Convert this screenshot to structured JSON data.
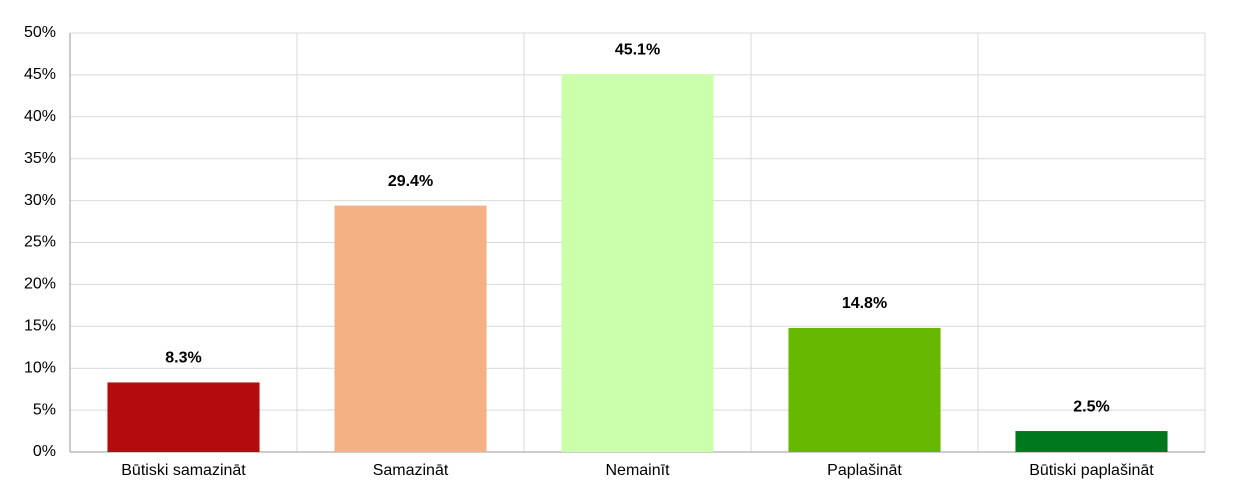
{
  "chart_data": {
    "type": "bar",
    "categories": [
      "Būtiski samazināt",
      "Samazināt",
      "Nemainīt",
      "Paplašināt",
      "Būtiski paplašināt"
    ],
    "values": [
      8.3,
      29.4,
      45.1,
      14.8,
      2.5
    ],
    "value_labels": [
      "8.3%",
      "29.4%",
      "45.1%",
      "14.8%",
      "2.5%"
    ],
    "colors": [
      "#b40c0c",
      "#f4b183",
      "#ccffaa",
      "#66b800",
      "#00781e"
    ],
    "ylim": [
      0,
      50
    ],
    "yticks": [
      {
        "value": 0,
        "label": "0%"
      },
      {
        "value": 5,
        "label": "5%"
      },
      {
        "value": 10,
        "label": "10%"
      },
      {
        "value": 15,
        "label": "15%"
      },
      {
        "value": 20,
        "label": "20%"
      },
      {
        "value": 25,
        "label": "25%"
      },
      {
        "value": 30,
        "label": "30%"
      },
      {
        "value": 35,
        "label": "35%"
      },
      {
        "value": 40,
        "label": "40%"
      },
      {
        "value": 45,
        "label": "45%"
      },
      {
        "value": 50,
        "label": "50%"
      }
    ],
    "grid": true
  }
}
